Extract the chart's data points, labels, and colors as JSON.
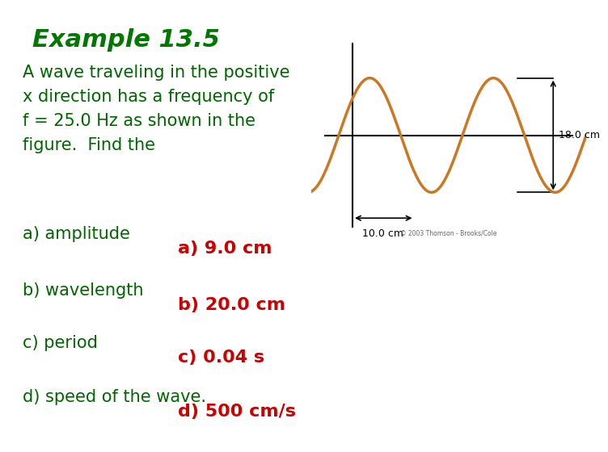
{
  "title": "Example 13.5",
  "title_color": "#007700",
  "title_fontsize": 22,
  "title_weight": "bold",
  "bg_color": "#ffffff",
  "wave_bg_color": "#FFF8D0",
  "body_lines": [
    "A wave traveling in the positive",
    "x direction has a frequency of",
    "f = 25.0 Hz as shown in the",
    "figure.  Find the"
  ],
  "body_color": "#006600",
  "body_fontsize": 15,
  "questions": [
    "a) amplitude",
    "b) wavelength",
    "c) period",
    "d) speed of the wave."
  ],
  "answers": [
    "a) 9.0 cm",
    "b) 20.0 cm",
    "c) 0.04 s",
    "d) 500 cm/s"
  ],
  "question_color": "#006600",
  "answer_color": "#cc0000",
  "question_fontsize": 15,
  "answer_fontsize": 16,
  "wave_color": "#cc7722",
  "axis_line_color": "#000000",
  "label_18": "18.0 cm",
  "label_10": "10.0 cm",
  "copyright": "© 2003 Thomson - Brooks/Cole"
}
